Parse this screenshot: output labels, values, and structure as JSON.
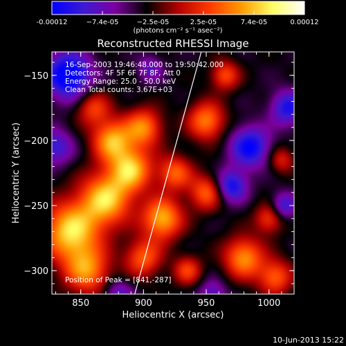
{
  "chart_data": {
    "type": "heatmap",
    "title": "Reconstructed RHESSI Image",
    "xlabel": "Heliocentric X (arcsec)",
    "ylabel": "Heliocentric Y (arcsec)",
    "xlim": [
      827,
      1020
    ],
    "ylim": [
      -318,
      -132
    ],
    "x_ticks": [
      850,
      900,
      950,
      1000
    ],
    "y_ticks": [
      -300,
      -250,
      -200,
      -150
    ],
    "x_tick_labels": [
      "850",
      "900",
      "950",
      "1000"
    ],
    "y_tick_labels": [
      "−300",
      "−250",
      "−200",
      "−150"
    ],
    "colorbar": {
      "range": [
        -0.00012,
        0.00012
      ],
      "tick_labels": [
        "-0.00012",
        "−7.4e-05",
        "−2.5e-05",
        "2.5e-05",
        "7.4e-05",
        "0.00012"
      ],
      "units": "(photons cm⁻² s⁻¹ asec⁻²)",
      "colormap": [
        "#0000ff",
        "#3c1ad2",
        "#7c00a0",
        "#000000",
        "#b40000",
        "#ff3a00",
        "#ff9a00",
        "#ffff66",
        "#ffffff"
      ]
    },
    "info_lines": [
      "16-Sep-2003 19:46:48.000 to 19:50:42.000",
      "Detectors: 4F 5F 6F 7F 8F, Att 0",
      "Energy Range: 25.0 - 50.0 keV",
      "Clean     Total counts: 3.67E+03"
    ],
    "peak_text": "Position of Peak = [841,-287]",
    "peak": [
      841,
      -287
    ],
    "limb_line": [
      [
        893,
        -318
      ],
      [
        946,
        -132
      ]
    ],
    "blobs": [
      [
        842,
        -270,
        20,
        0.95
      ],
      [
        870,
        -245,
        18,
        0.9
      ],
      [
        855,
        -300,
        16,
        0.7
      ],
      [
        890,
        -222,
        15,
        0.85
      ],
      [
        875,
        -200,
        14,
        0.8
      ],
      [
        900,
        -190,
        13,
        0.7
      ],
      [
        915,
        -260,
        14,
        0.85
      ],
      [
        900,
        -290,
        13,
        0.6
      ],
      [
        925,
        -225,
        12,
        0.6
      ],
      [
        860,
        -175,
        12,
        0.5
      ],
      [
        950,
        -185,
        13,
        0.7
      ],
      [
        950,
        -240,
        12,
        0.6
      ],
      [
        980,
        -290,
        14,
        0.75
      ],
      [
        1005,
        -305,
        12,
        0.6
      ],
      [
        1000,
        -260,
        10,
        0.5
      ],
      [
        965,
        -150,
        10,
        0.55
      ],
      [
        935,
        -300,
        10,
        0.5
      ],
      [
        1010,
        -215,
        9,
        0.4
      ],
      [
        840,
        -150,
        16,
        -0.85
      ],
      [
        830,
        -205,
        12,
        -0.5
      ],
      [
        985,
        -205,
        14,
        -0.7
      ],
      [
        1015,
        -175,
        12,
        -0.6
      ],
      [
        970,
        -235,
        11,
        -0.65
      ],
      [
        1012,
        -250,
        9,
        -0.5
      ],
      [
        955,
        -318,
        10,
        -0.4
      ],
      [
        880,
        -318,
        10,
        -0.4
      ],
      [
        905,
        -145,
        9,
        -0.35
      ]
    ]
  },
  "footer": {
    "timestamp": "10-Jun-2013 15:22"
  }
}
